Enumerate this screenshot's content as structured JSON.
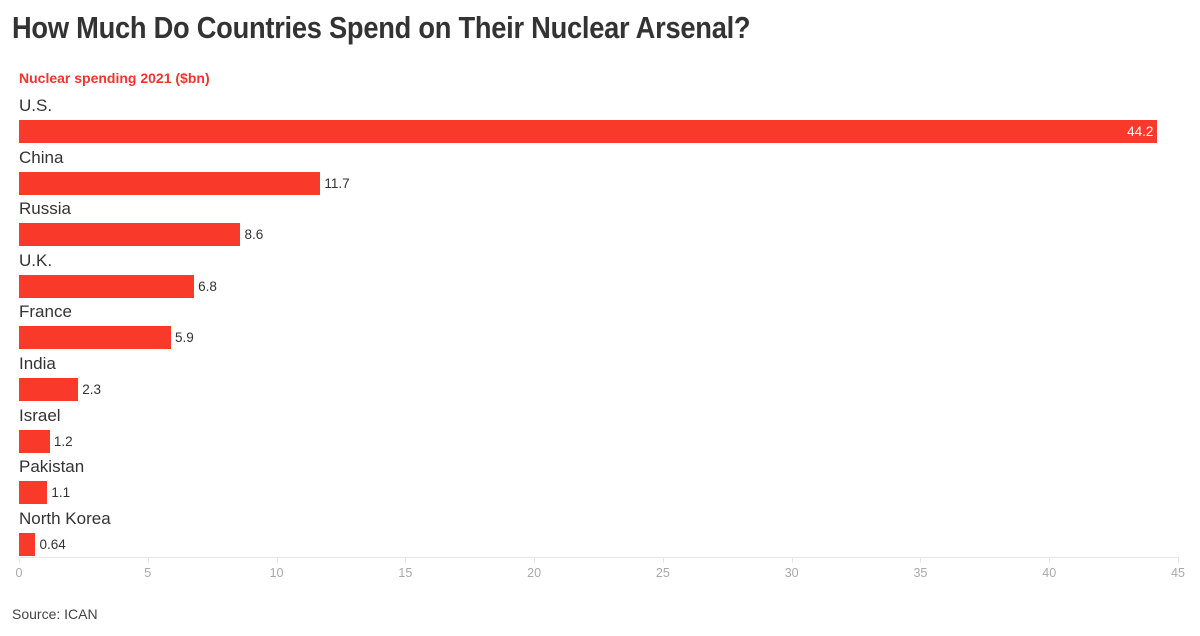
{
  "header": {
    "title": "How Much Do Countries Spend on Their Nuclear Arsenal?",
    "subtitle": "Nuclear spending 2021 ($bn)"
  },
  "footer": {
    "source": "Source: ICAN"
  },
  "colors": {
    "bar": "#f93a2b",
    "subtitle": "#f0362a",
    "title": "#333333",
    "axis_tick_label": "#a8a8a8"
  },
  "chart_data": {
    "type": "bar",
    "orientation": "horizontal",
    "title": "How Much Do Countries Spend on Their Nuclear Arsenal?",
    "subtitle": "Nuclear spending 2021 ($bn)",
    "xlabel": "",
    "ylabel": "",
    "categories": [
      "U.S.",
      "China",
      "Russia",
      "U.K.",
      "France",
      "India",
      "Israel",
      "Pakistan",
      "North Korea"
    ],
    "values": [
      44.2,
      11.7,
      8.6,
      6.8,
      5.9,
      2.3,
      1.2,
      1.1,
      0.64
    ],
    "value_labels": [
      "44.2",
      "11.7",
      "8.6",
      "6.8",
      "5.9",
      "2.3",
      "1.2",
      "1.1",
      "0.64"
    ],
    "xlim": [
      0,
      45
    ],
    "xticks": [
      0,
      5,
      10,
      15,
      20,
      25,
      30,
      35,
      40,
      45
    ],
    "xtick_labels": [
      "0",
      "5",
      "10",
      "15",
      "20",
      "25",
      "30",
      "35",
      "40",
      "45"
    ],
    "grid": false,
    "legend": null,
    "source": "Source: ICAN"
  }
}
